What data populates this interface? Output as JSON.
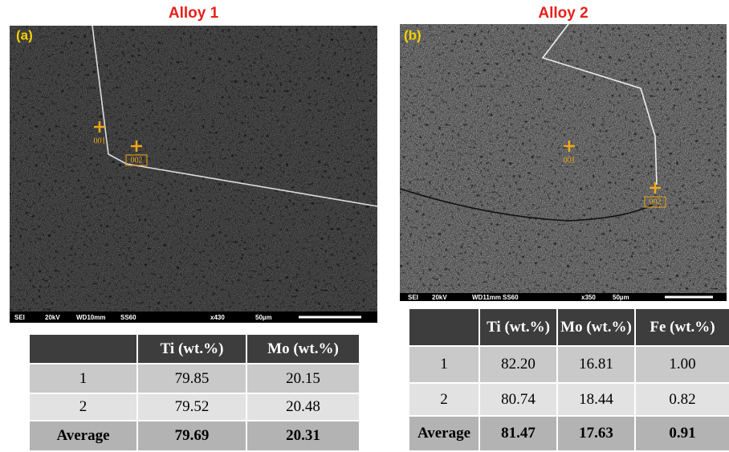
{
  "panels": [
    {
      "title": "Alloy 1",
      "label": "(a)",
      "points": [
        "001",
        "002"
      ],
      "info": [
        "SEI",
        "20kV",
        "WD10mm",
        "SS60",
        "x430",
        "50µm"
      ],
      "table": {
        "header": [
          "Ti (wt.%)",
          "Mo (wt.%)"
        ],
        "rows": [
          [
            "1",
            "79.85",
            "20.15"
          ],
          [
            "2",
            "79.52",
            "20.48"
          ],
          [
            "Average",
            "79.69",
            "20.31"
          ]
        ]
      }
    },
    {
      "title": "Alloy 2",
      "label": "(b)",
      "points": [
        "001",
        "002"
      ],
      "info": [
        "SEI",
        "20kV",
        "WD11mm",
        "SS60",
        "x350",
        "50µm"
      ],
      "table": {
        "header": [
          "Ti (wt.%)",
          "Mo (wt.%)",
          "Fe (wt.%)"
        ],
        "rows": [
          [
            "1",
            "82.20",
            "16.81",
            "1.00"
          ],
          [
            "2",
            "80.74",
            "18.44",
            "0.82"
          ],
          [
            "Average",
            "81.47",
            "17.63",
            "0.91"
          ]
        ]
      }
    }
  ]
}
